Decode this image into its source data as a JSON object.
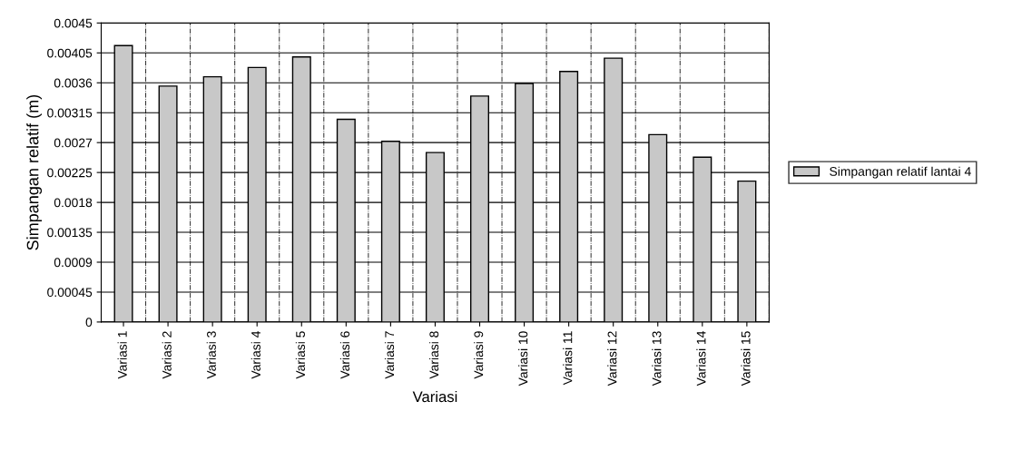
{
  "chart_data": {
    "type": "bar",
    "xlabel": "Variasi",
    "ylabel": "Simpangan relatif (m)",
    "categories": [
      "Variasi 1",
      "Variasi 2",
      "Variasi 3",
      "Variasi 4",
      "Variasi 5",
      "Variasi 6",
      "Variasi 7",
      "Variasi 8",
      "Variasi 9",
      "Variasi 10",
      "Variasi 11",
      "Variasi 12",
      "Variasi 13",
      "Variasi 14",
      "Variasi 15"
    ],
    "series": [
      {
        "name": "Simpangan relatif lantai 4",
        "color": "#c8c8c8",
        "values": [
          0.00416,
          0.00355,
          0.00369,
          0.00383,
          0.00399,
          0.00305,
          0.00272,
          0.00255,
          0.0034,
          0.00359,
          0.00377,
          0.00397,
          0.00282,
          0.00248,
          0.00212
        ]
      }
    ],
    "ylim": [
      0,
      0.0045
    ],
    "yticks": [
      0,
      0.00045,
      0.0009,
      0.00135,
      0.0018,
      0.00225,
      0.0027,
      0.00315,
      0.0036,
      0.00405,
      0.0045
    ],
    "grid": true,
    "legend": "right"
  }
}
